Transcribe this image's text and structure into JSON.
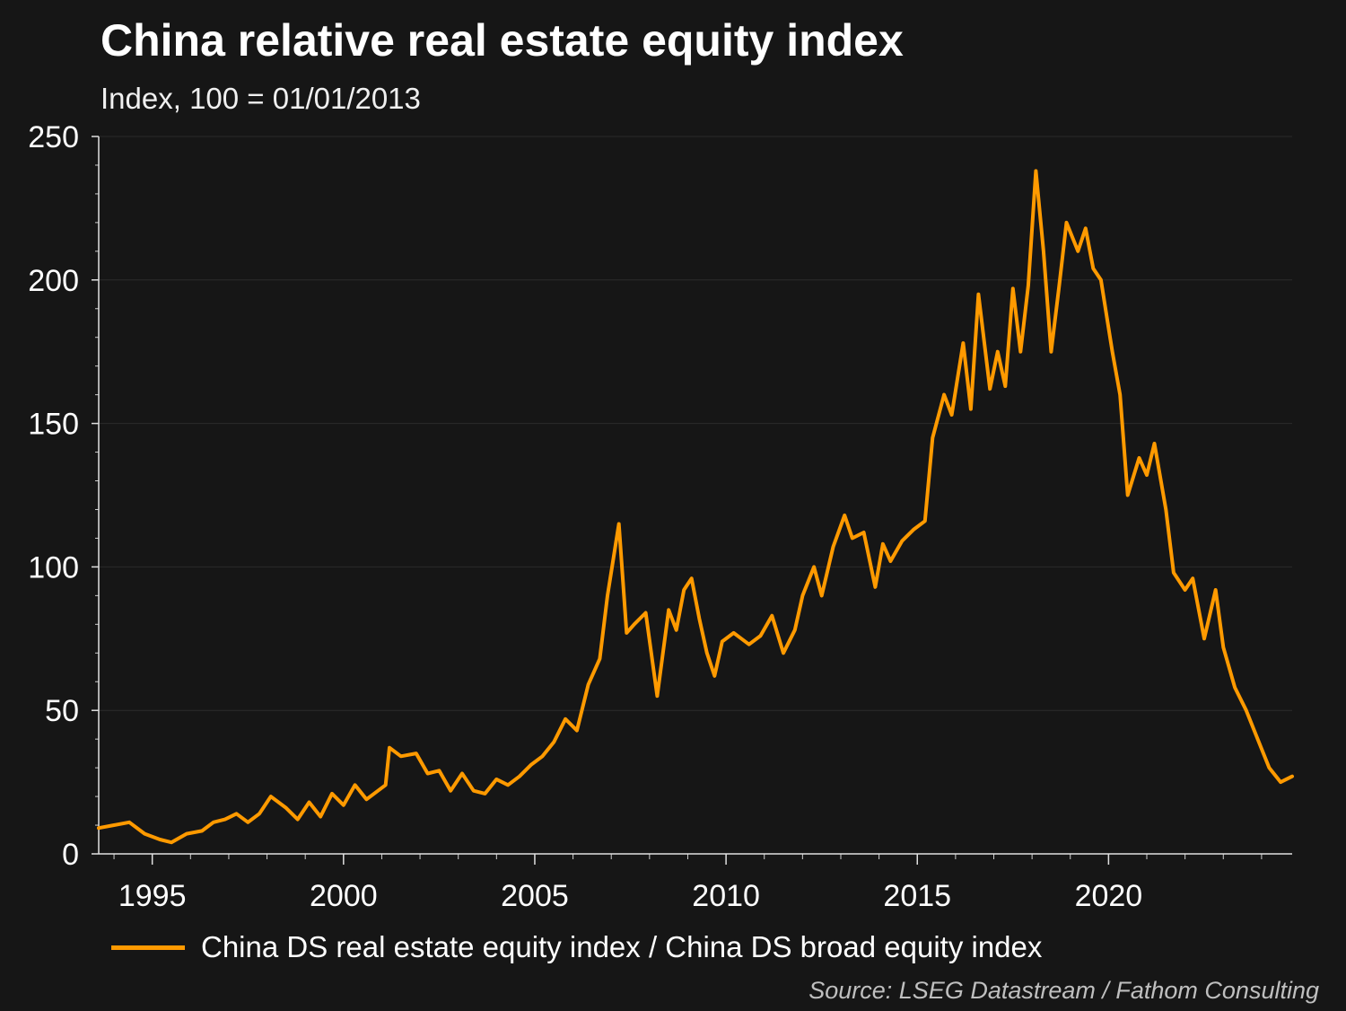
{
  "chart_data": {
    "type": "line",
    "title": "China relative real estate equity index",
    "subtitle": "Index, 100 = 01/01/2013",
    "ylim": [
      0,
      250
    ],
    "yticks": [
      0,
      50,
      100,
      150,
      200,
      250
    ],
    "xlim": [
      1993.6,
      2024.8
    ],
    "xticks": [
      1995,
      2000,
      2005,
      2010,
      2015,
      2020
    ],
    "grid": "horizontal",
    "legend_position": "bottom",
    "source": "Source: LSEG Datastream / Fathom Consulting",
    "series": [
      {
        "name": "China DS real estate equity index / China DS broad equity index",
        "color": "#ff9a00",
        "x": [
          1993.6,
          1994.0,
          1994.4,
          1994.8,
          1995.2,
          1995.5,
          1995.9,
          1996.3,
          1996.6,
          1996.9,
          1997.2,
          1997.5,
          1997.8,
          1998.1,
          1998.5,
          1998.8,
          1999.1,
          1999.4,
          1999.7,
          2000.0,
          2000.3,
          2000.6,
          2000.9,
          2001.1,
          2001.2,
          2001.5,
          2001.9,
          2002.2,
          2002.5,
          2002.8,
          2003.1,
          2003.4,
          2003.7,
          2004.0,
          2004.3,
          2004.6,
          2004.9,
          2005.2,
          2005.5,
          2005.8,
          2006.1,
          2006.4,
          2006.7,
          2006.9,
          2007.2,
          2007.4,
          2007.6,
          2007.9,
          2008.2,
          2008.5,
          2008.7,
          2008.9,
          2009.1,
          2009.3,
          2009.5,
          2009.7,
          2009.9,
          2010.2,
          2010.4,
          2010.6,
          2010.9,
          2011.2,
          2011.5,
          2011.8,
          2012.0,
          2012.3,
          2012.5,
          2012.8,
          2013.1,
          2013.3,
          2013.6,
          2013.9,
          2014.1,
          2014.3,
          2014.6,
          2014.9,
          2015.2,
          2015.4,
          2015.7,
          2015.9,
          2016.2,
          2016.4,
          2016.6,
          2016.9,
          2017.1,
          2017.3,
          2017.5,
          2017.7,
          2017.9,
          2018.1,
          2018.3,
          2018.5,
          2018.7,
          2018.9,
          2019.2,
          2019.4,
          2019.6,
          2019.8,
          2020.1,
          2020.3,
          2020.5,
          2020.8,
          2021.0,
          2021.2,
          2021.5,
          2021.7,
          2022.0,
          2022.2,
          2022.5,
          2022.8,
          2023.0,
          2023.3,
          2023.6,
          2023.9,
          2024.2,
          2024.5,
          2024.8
        ],
        "y": [
          9,
          10,
          11,
          7,
          5,
          4,
          7,
          8,
          11,
          12,
          14,
          11,
          14,
          20,
          16,
          12,
          18,
          13,
          21,
          17,
          24,
          19,
          22,
          24,
          37,
          34,
          35,
          28,
          29,
          22,
          28,
          22,
          21,
          26,
          24,
          27,
          31,
          34,
          39,
          47,
          43,
          59,
          68,
          90,
          115,
          77,
          80,
          84,
          55,
          85,
          78,
          92,
          96,
          82,
          70,
          62,
          74,
          77,
          75,
          73,
          76,
          83,
          70,
          78,
          90,
          100,
          90,
          107,
          118,
          110,
          112,
          93,
          108,
          102,
          109,
          113,
          116,
          145,
          160,
          153,
          178,
          155,
          195,
          162,
          175,
          163,
          197,
          175,
          198,
          238,
          210,
          175,
          197,
          220,
          210,
          218,
          204,
          200,
          175,
          160,
          125,
          138,
          132,
          143,
          120,
          98,
          92,
          96,
          75,
          92,
          72,
          58,
          50,
          40,
          30,
          25,
          27
        ]
      }
    ]
  }
}
